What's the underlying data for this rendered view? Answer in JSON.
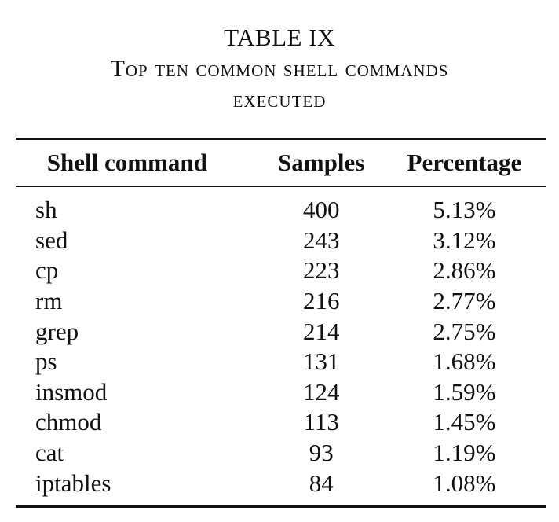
{
  "caption": {
    "label": "TABLE IX",
    "title_line1": "Top ten common shell commands",
    "title_line2": "executed"
  },
  "table": {
    "headers": [
      "Shell command",
      "Samples",
      "Percentage"
    ],
    "rows": [
      [
        "sh",
        "400",
        "5.13%"
      ],
      [
        "sed",
        "243",
        "3.12%"
      ],
      [
        "cp",
        "223",
        "2.86%"
      ],
      [
        "rm",
        "216",
        "2.77%"
      ],
      [
        "grep",
        "214",
        "2.75%"
      ],
      [
        "ps",
        "131",
        "1.68%"
      ],
      [
        "insmod",
        "124",
        "1.59%"
      ],
      [
        "chmod",
        "113",
        "1.45%"
      ],
      [
        "cat",
        "93",
        "1.19%"
      ],
      [
        "iptables",
        "84",
        "1.08%"
      ]
    ]
  }
}
